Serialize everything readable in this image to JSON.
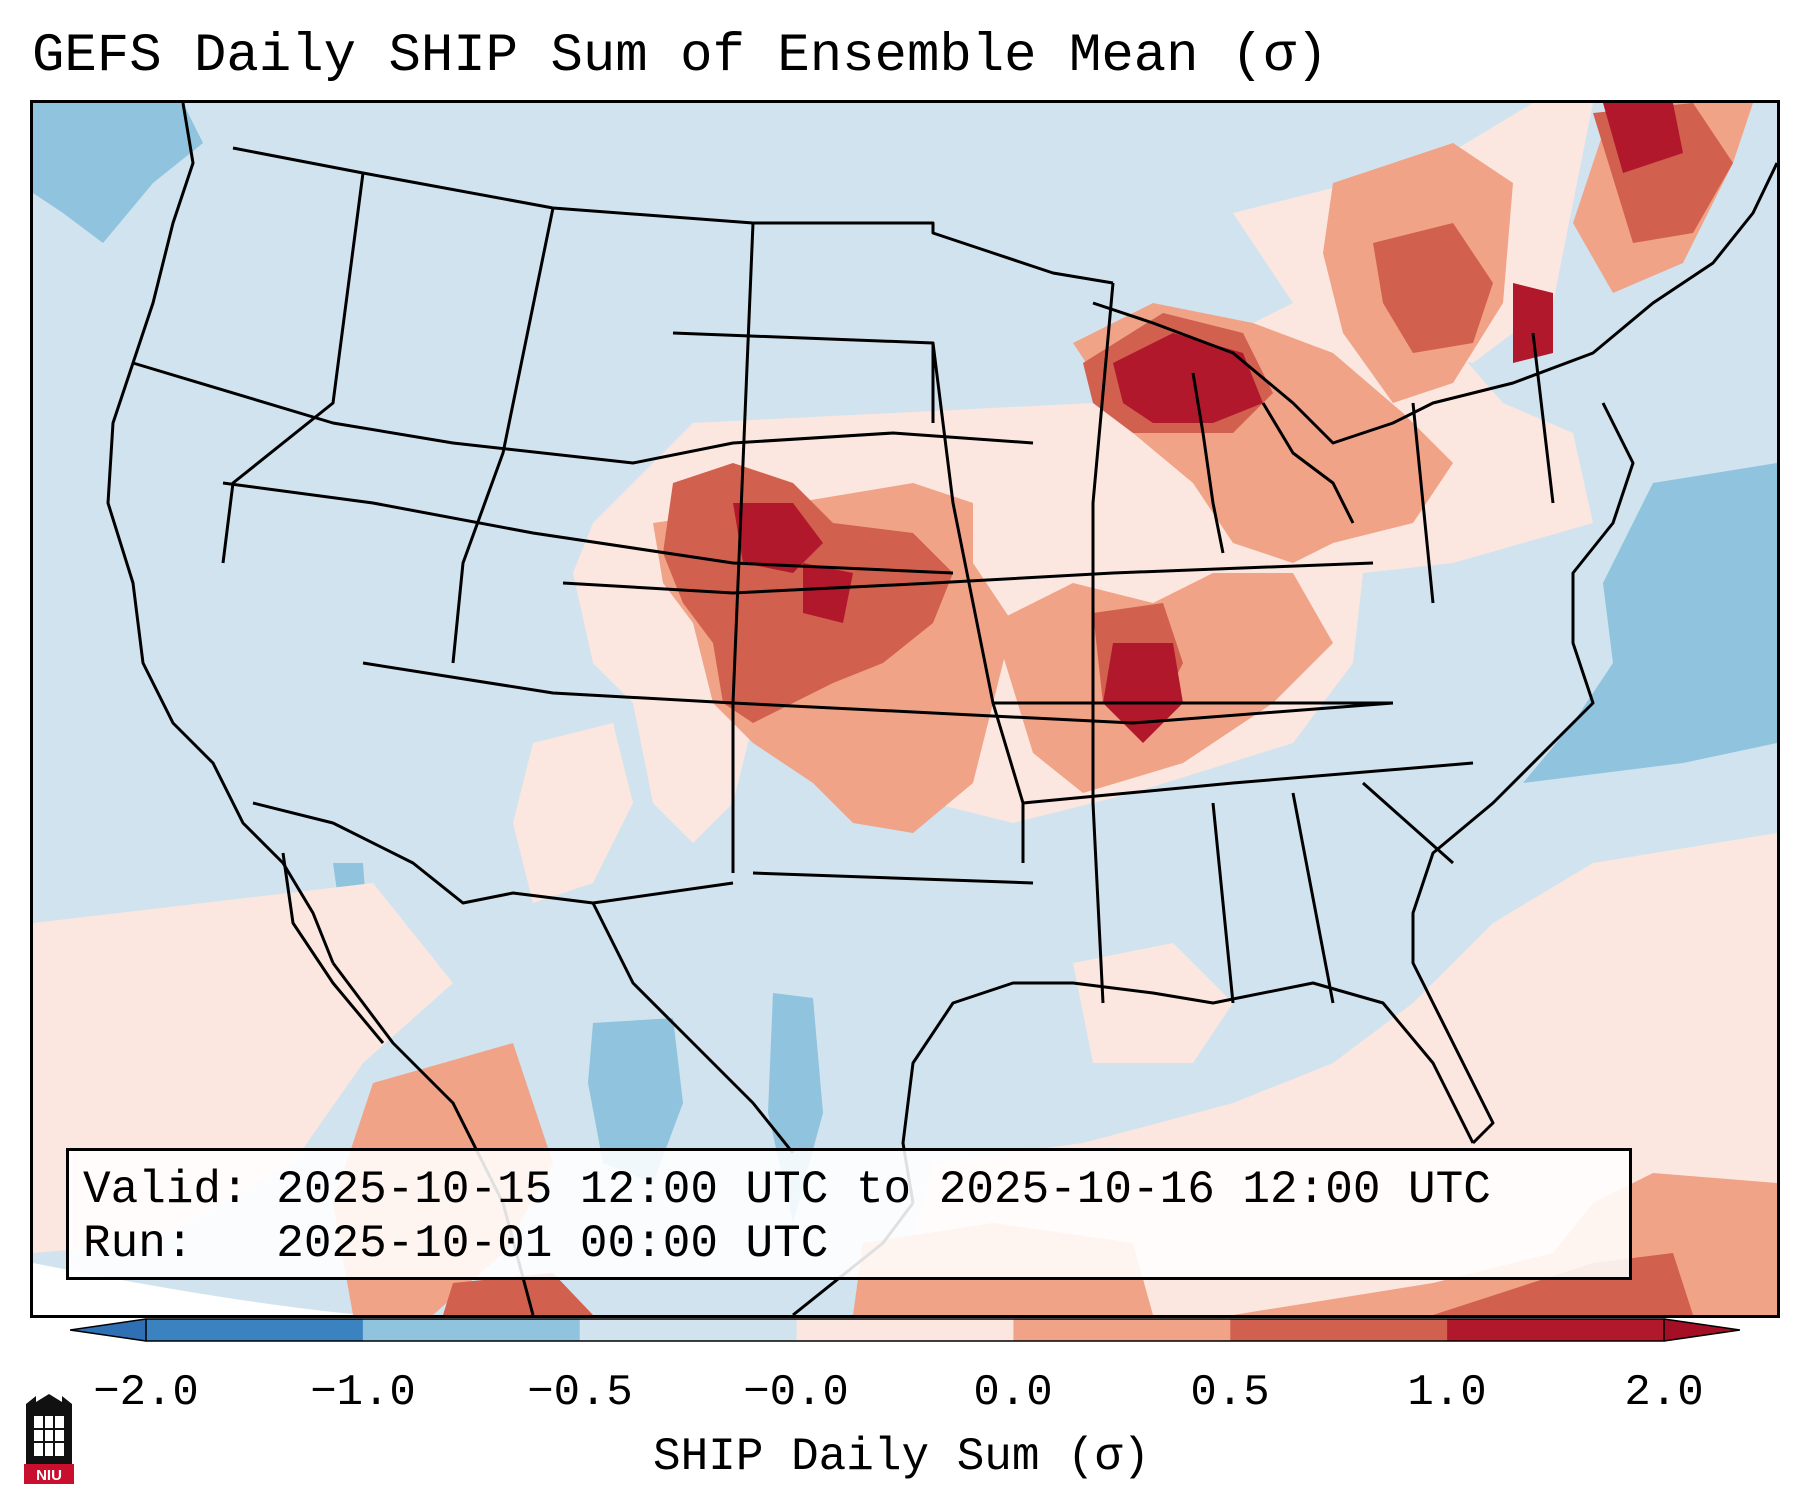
{
  "title": "GEFS Daily SHIP Sum of Ensemble Mean (σ)",
  "info": {
    "valid_label": "Valid:",
    "valid_value": "2025-10-15 12:00 UTC to 2025-10-16 12:00 UTC",
    "run_label": "Run:",
    "run_value": "2025-10-01 00:00 UTC"
  },
  "colorbar": {
    "label": "SHIP Daily Sum (σ)",
    "ticks": [
      "−2.0",
      "−1.0",
      "−0.5",
      "−0.0",
      "0.0",
      "0.5",
      "1.0",
      "2.0"
    ],
    "colors": [
      "#3b82c0",
      "#8fc3de",
      "#d0e3ef",
      "#fbe7df",
      "#f0a387",
      "#d1604e",
      "#b2182b"
    ],
    "underflow_color": "#2f6fb3",
    "overflow_color": "#a50f26"
  },
  "logo": {
    "text": "NIU"
  }
}
